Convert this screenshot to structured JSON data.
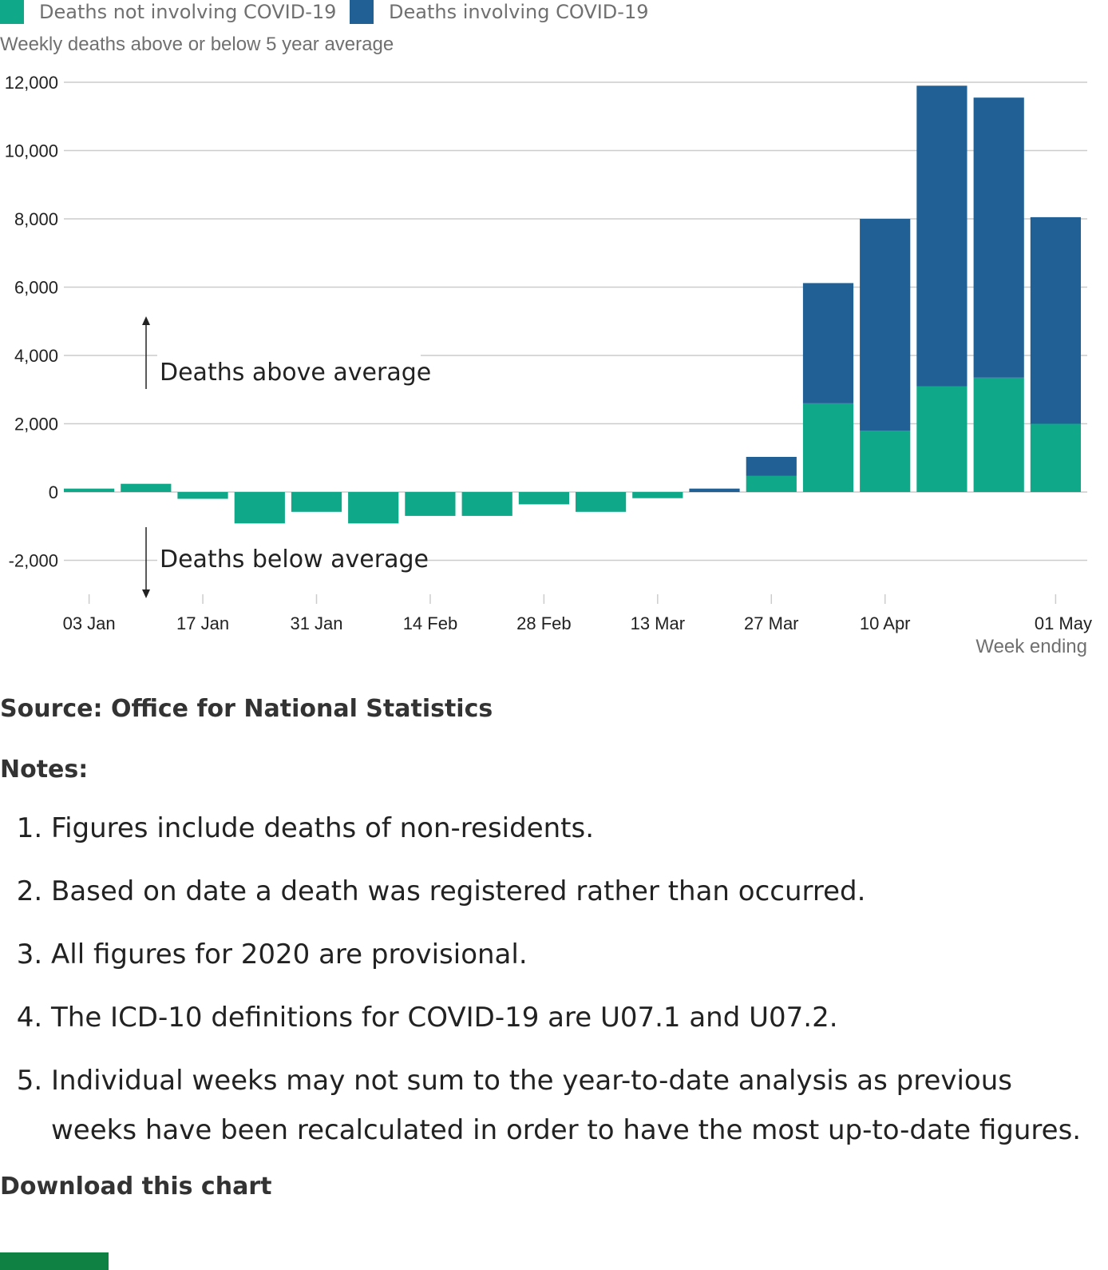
{
  "chart_data": {
    "type": "bar",
    "stacked": true,
    "title": "",
    "subtitle": "Weekly deaths above or below 5 year average",
    "xlabel": "Week ending",
    "ylabel": "",
    "ylim": [
      -3000,
      12000
    ],
    "yticks": [
      -2000,
      0,
      2000,
      4000,
      6000,
      8000,
      10000,
      12000
    ],
    "ytick_labels": [
      "-2,000",
      "0",
      "2,000",
      "4,000",
      "6,000",
      "8,000",
      "10,000",
      "12,000"
    ],
    "grid": true,
    "legend_position": "top-left",
    "categories": [
      "03 Jan",
      "10 Jan",
      "17 Jan",
      "24 Jan",
      "31 Jan",
      "07 Feb",
      "14 Feb",
      "21 Feb",
      "28 Feb",
      "06 Mar",
      "13 Mar",
      "20 Mar",
      "27 Mar",
      "03 Apr",
      "10 Apr",
      "17 Apr",
      "24 Apr",
      "01 May"
    ],
    "xtick_labels": [
      "03 Jan",
      "17 Jan",
      "31 Jan",
      "14 Feb",
      "28 Feb",
      "13 Mar",
      "27 Mar",
      "10 Apr",
      "01 May"
    ],
    "series": [
      {
        "name": "Deaths not involving COVID-19",
        "color": "#0fa889",
        "values": [
          100,
          240,
          -200,
          -920,
          -580,
          -920,
          -700,
          -700,
          -360,
          -580,
          -180,
          0,
          470,
          2600,
          1800,
          3100,
          3350,
          2000
        ]
      },
      {
        "name": "Deaths involving COVID-19",
        "color": "#206095",
        "values": [
          0,
          0,
          0,
          0,
          0,
          0,
          0,
          0,
          0,
          0,
          0,
          100,
          560,
          3520,
          6200,
          8800,
          8200,
          6050
        ]
      }
    ],
    "annotations": [
      "Deaths above average",
      "Deaths below average"
    ]
  },
  "footer": {
    "source": "Source: Office for National Statistics",
    "notes_heading": "Notes:",
    "notes": [
      "Figures include deaths of non-residents.",
      "Based on date a death was registered rather than occurred.",
      "All figures for 2020 are provisional.",
      "The ICD-10 definitions for COVID-19 are U07.1 and U07.2.",
      "Individual weeks may not sum to the year-to-date analysis as previous weeks have been recalculated in order to have the most up-to-date figures."
    ],
    "download_heading": "Download this chart"
  },
  "colors": {
    "download_button": "#0f8243"
  }
}
